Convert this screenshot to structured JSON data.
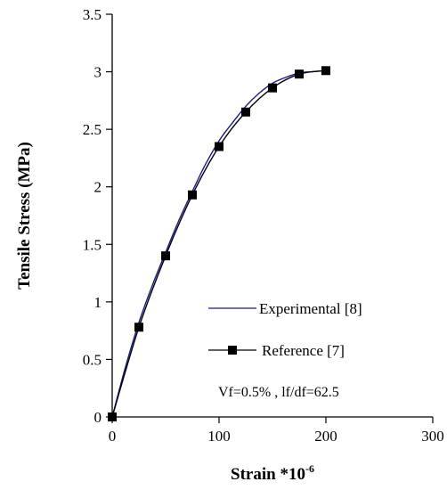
{
  "chart_data": {
    "type": "line",
    "title": "",
    "xlabel": "Strain *10",
    "xlabel_superscript": "-6",
    "ylabel": "Tensile Stress (MPa)",
    "xlim": [
      0,
      300
    ],
    "ylim": [
      0,
      3.5
    ],
    "x_ticks": [
      0,
      100,
      200,
      300
    ],
    "x_tick_labels": [
      "0",
      "100",
      "200",
      "300"
    ],
    "y_ticks": [
      0,
      0.5,
      1,
      1.5,
      2,
      2.5,
      3,
      3.5
    ],
    "y_tick_labels": [
      "0",
      "0.5",
      "1",
      "1.5",
      "2",
      "2.5",
      "3",
      "3.5"
    ],
    "grid": false,
    "legend_position": "bottom-right",
    "series": [
      {
        "name": "Experimental [8]",
        "color": "#1a1a8c",
        "marker": "none",
        "x": [
          0,
          12,
          25,
          37,
          50,
          62,
          75,
          87,
          100,
          112,
          125,
          137,
          150,
          162,
          175,
          187,
          200
        ],
        "y": [
          0,
          0.42,
          0.82,
          1.13,
          1.43,
          1.7,
          1.96,
          2.19,
          2.4,
          2.55,
          2.7,
          2.81,
          2.9,
          2.95,
          2.99,
          3.0,
          3.01
        ]
      },
      {
        "name": "Reference [7]",
        "color": "#000000",
        "marker": "square",
        "x": [
          0,
          25,
          50,
          75,
          100,
          125,
          150,
          175,
          200
        ],
        "y": [
          0,
          0.78,
          1.4,
          1.93,
          2.35,
          2.65,
          2.86,
          2.98,
          3.01
        ]
      }
    ],
    "annotation": "Vf=0.5% , lf/df=62.5"
  }
}
